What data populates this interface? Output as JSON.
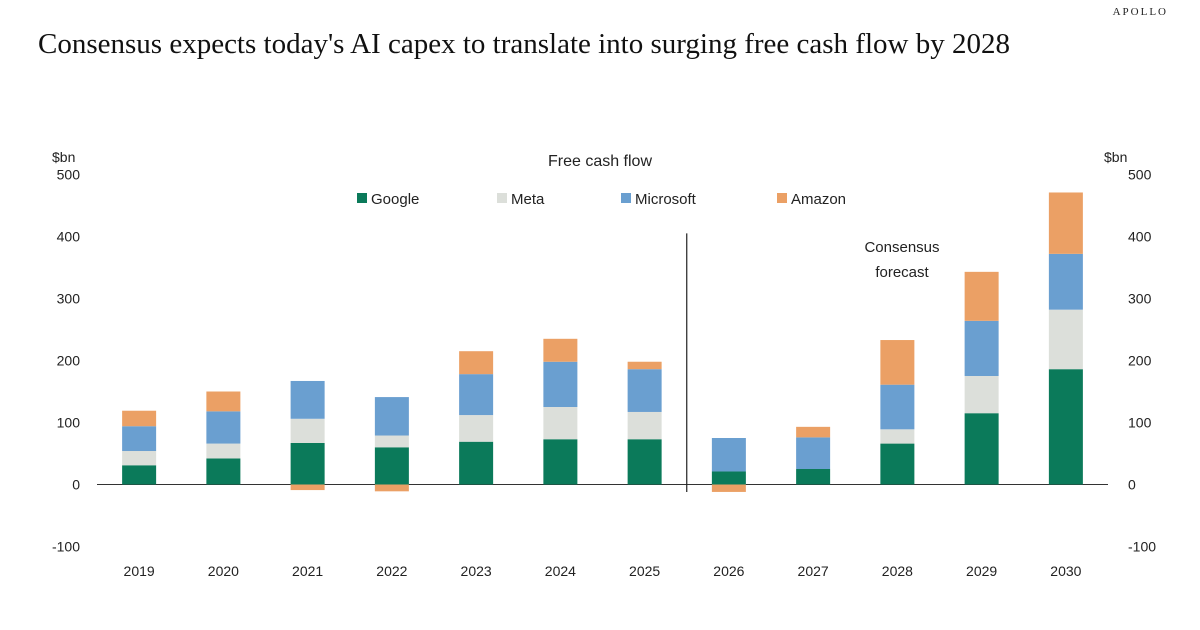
{
  "header": {
    "brand": "APOLLO",
    "title": "Consensus expects today's AI capex to translate into surging free cash flow by 2028"
  },
  "chart_data": {
    "type": "bar",
    "stacked": true,
    "title": "Free cash flow",
    "ylabel_left": "$bn",
    "ylabel_right": "$bn",
    "ylim": [
      -100,
      500
    ],
    "yticks": [
      -100,
      0,
      100,
      200,
      300,
      400,
      500
    ],
    "categories": [
      "2019",
      "2020",
      "2021",
      "2022",
      "2023",
      "2024",
      "2025",
      "2026",
      "2027",
      "2028",
      "2029",
      "2030"
    ],
    "series": [
      {
        "name": "Google",
        "color": "#0b7a5a",
        "values": [
          31,
          42,
          67,
          60,
          69,
          73,
          73,
          21,
          25,
          66,
          115,
          186
        ]
      },
      {
        "name": "Meta",
        "color": "#dcdfda",
        "values": [
          23,
          24,
          39,
          19,
          43,
          52,
          44,
          0,
          0,
          23,
          60,
          96
        ]
      },
      {
        "name": "Microsoft",
        "color": "#6a9fd0",
        "values": [
          40,
          52,
          61,
          62,
          66,
          73,
          69,
          54,
          51,
          72,
          89,
          90
        ]
      },
      {
        "name": "Amazon",
        "color": "#eba065",
        "values": [
          25,
          32,
          -9,
          -11,
          37,
          37,
          12,
          -12,
          17,
          72,
          79,
          99
        ]
      }
    ],
    "annotation": {
      "text_line1": "Consensus",
      "text_line2": "forecast"
    },
    "forecast_divider_between": [
      "2025",
      "2026"
    ],
    "legend_position": "top-center",
    "grid": false
  }
}
